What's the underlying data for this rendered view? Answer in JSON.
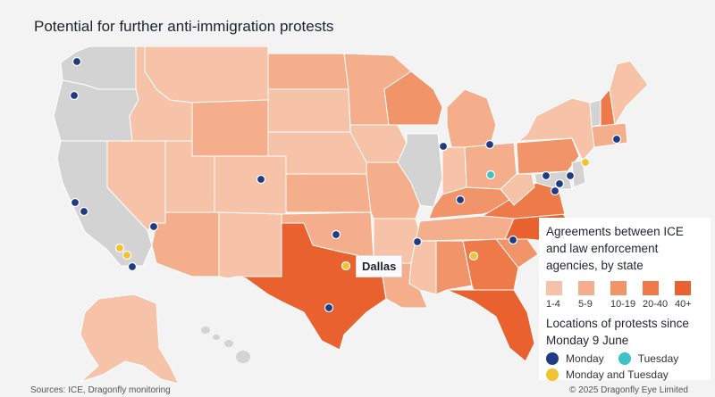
{
  "title": "Potential for further anti-immigration protests",
  "legend": {
    "agreements_title": "Agreements between ICE and law enforcement agencies, by state",
    "bins": [
      {
        "label": "1-4",
        "color": "#f6c3a8"
      },
      {
        "label": "5-9",
        "color": "#f4ae8b"
      },
      {
        "label": "10-19",
        "color": "#f1946a"
      },
      {
        "label": "20-40",
        "color": "#ee7a49"
      },
      {
        "label": "40+",
        "color": "#ea6130"
      }
    ],
    "protests_title": "Locations of protests since Monday 9 June",
    "protest_types": [
      {
        "label": "Monday",
        "color": "#1f3b84"
      },
      {
        "label": "Tuesday",
        "color": "#3ec2c8"
      },
      {
        "label": "Monday and Tuesday",
        "color": "#f2c331"
      }
    ]
  },
  "callout": "Dallas",
  "source": "Sources: ICE, Dragonfly monitoring",
  "copyright": "© 2025 Dragonfly Eye Limited",
  "colors": {
    "no_data": "#d3d3d3",
    "background": "#f3f3f3"
  }
}
